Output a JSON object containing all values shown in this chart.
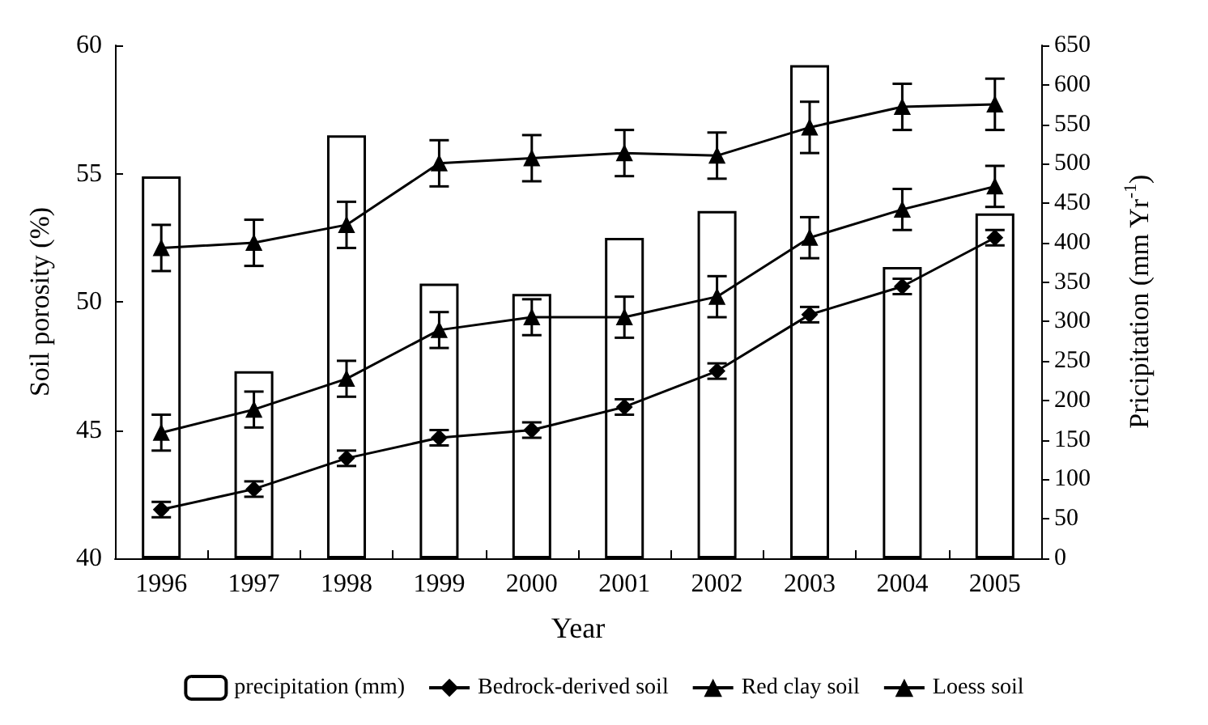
{
  "chart_data": {
    "type": "line",
    "xlabel": "Year",
    "ylabel": "Soil porosity (%)",
    "y2label": "Pricipitation (mm Yr$^{-1}$)",
    "categories": [
      "1996",
      "1997",
      "1998",
      "1999",
      "2000",
      "2001",
      "2002",
      "2003",
      "2004",
      "2005"
    ],
    "series": [
      {
        "name": "precipitation (mm)",
        "type": "bar",
        "axis": "y2",
        "color": "#000000",
        "values": [
          484,
          237,
          536,
          348,
          335,
          406,
          440,
          625,
          369,
          437
        ]
      },
      {
        "name": "Bedrock-derived soil",
        "marker": "diamond",
        "color": "#000000",
        "values": [
          41.9,
          42.7,
          43.9,
          44.7,
          45.0,
          45.9,
          47.3,
          49.5,
          50.6,
          52.5
        ],
        "errors": [
          0.3,
          0.3,
          0.3,
          0.3,
          0.3,
          0.3,
          0.3,
          0.3,
          0.3,
          0.3
        ]
      },
      {
        "name": "Red clay soil",
        "marker": "triangle",
        "color": "#000000",
        "values": [
          44.9,
          45.8,
          47.0,
          48.9,
          49.4,
          49.4,
          50.2,
          52.5,
          53.6,
          54.5
        ],
        "errors": [
          0.7,
          0.7,
          0.7,
          0.7,
          0.7,
          0.8,
          0.8,
          0.8,
          0.8,
          0.8
        ]
      },
      {
        "name": "Loess soil",
        "marker": "triangle",
        "color": "#000000",
        "values": [
          52.1,
          52.3,
          53.0,
          55.4,
          55.6,
          55.8,
          55.7,
          56.8,
          57.6,
          57.7
        ],
        "errors": [
          0.9,
          0.9,
          0.9,
          0.9,
          0.9,
          0.9,
          0.9,
          1.0,
          0.9,
          1.0
        ]
      }
    ],
    "ylim": [
      40,
      60
    ],
    "yticks": [
      40,
      45,
      50,
      55,
      60
    ],
    "y2lim": [
      0,
      650
    ],
    "y2ticks": [
      0,
      50,
      100,
      150,
      200,
      250,
      300,
      350,
      400,
      450,
      500,
      550,
      600,
      650
    ],
    "grid": false,
    "legend": "bottom"
  }
}
